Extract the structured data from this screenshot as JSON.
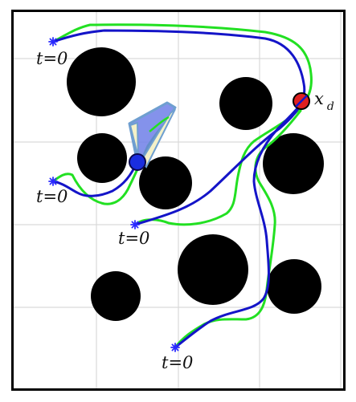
{
  "figure": {
    "start_labels": [
      "t=0",
      "t=0",
      "t=0",
      "t=0"
    ],
    "goal_label": "x",
    "goal_label_subscript": "d"
  },
  "colors": {
    "background": "#ffffff",
    "border": "#000000",
    "grid": "#d9d9d9",
    "obstacle": "#000000",
    "trajectory_blue": "#1414c8",
    "trajectory_green": "#22e022",
    "start_marker": "#2a2aff",
    "goal_fill": "#e02020",
    "robot_fill": "#1a2ee0",
    "cone_outer": "#6f7fe8",
    "cone_outer_edge": "#6f9fd0",
    "cone_inner": "#f4f1c8"
  },
  "icons": {
    "start": "asterisk-start-marker",
    "goal": "goal-circle",
    "robot": "robot-disc",
    "sensor": "sensing-cone"
  }
}
